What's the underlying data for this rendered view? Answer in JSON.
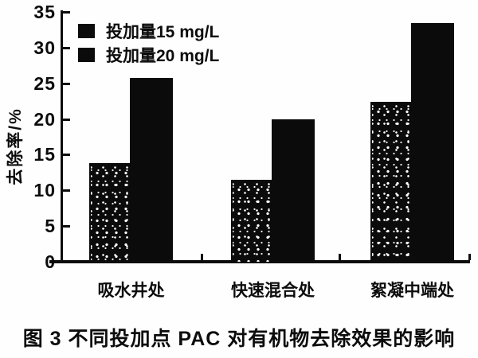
{
  "chart_data": {
    "type": "bar",
    "caption": "图 3  不同投加点 PAC 对有机物去除效果的影响",
    "categories": [
      "吸水井处",
      "快速混合处",
      "絮凝中端处"
    ],
    "series": [
      {
        "name": "投加量15 mg/L",
        "values": [
          13.8,
          11.5,
          22.4
        ],
        "style": "speckled-black"
      },
      {
        "name": "投加量20 mg/L",
        "values": [
          25.7,
          19.9,
          33.4
        ],
        "style": "solid-black"
      }
    ],
    "xlabel": "",
    "ylabel": "去除率/%",
    "ylim": [
      0,
      35
    ],
    "ytick_step": 5,
    "ytick_labels": [
      "0",
      "5",
      "10",
      "15",
      "20",
      "25",
      "30",
      "35"
    ],
    "legend_position": "top-left-inside",
    "grid": false,
    "bar_color": "#0b0b0b",
    "background": "#fefefe"
  }
}
